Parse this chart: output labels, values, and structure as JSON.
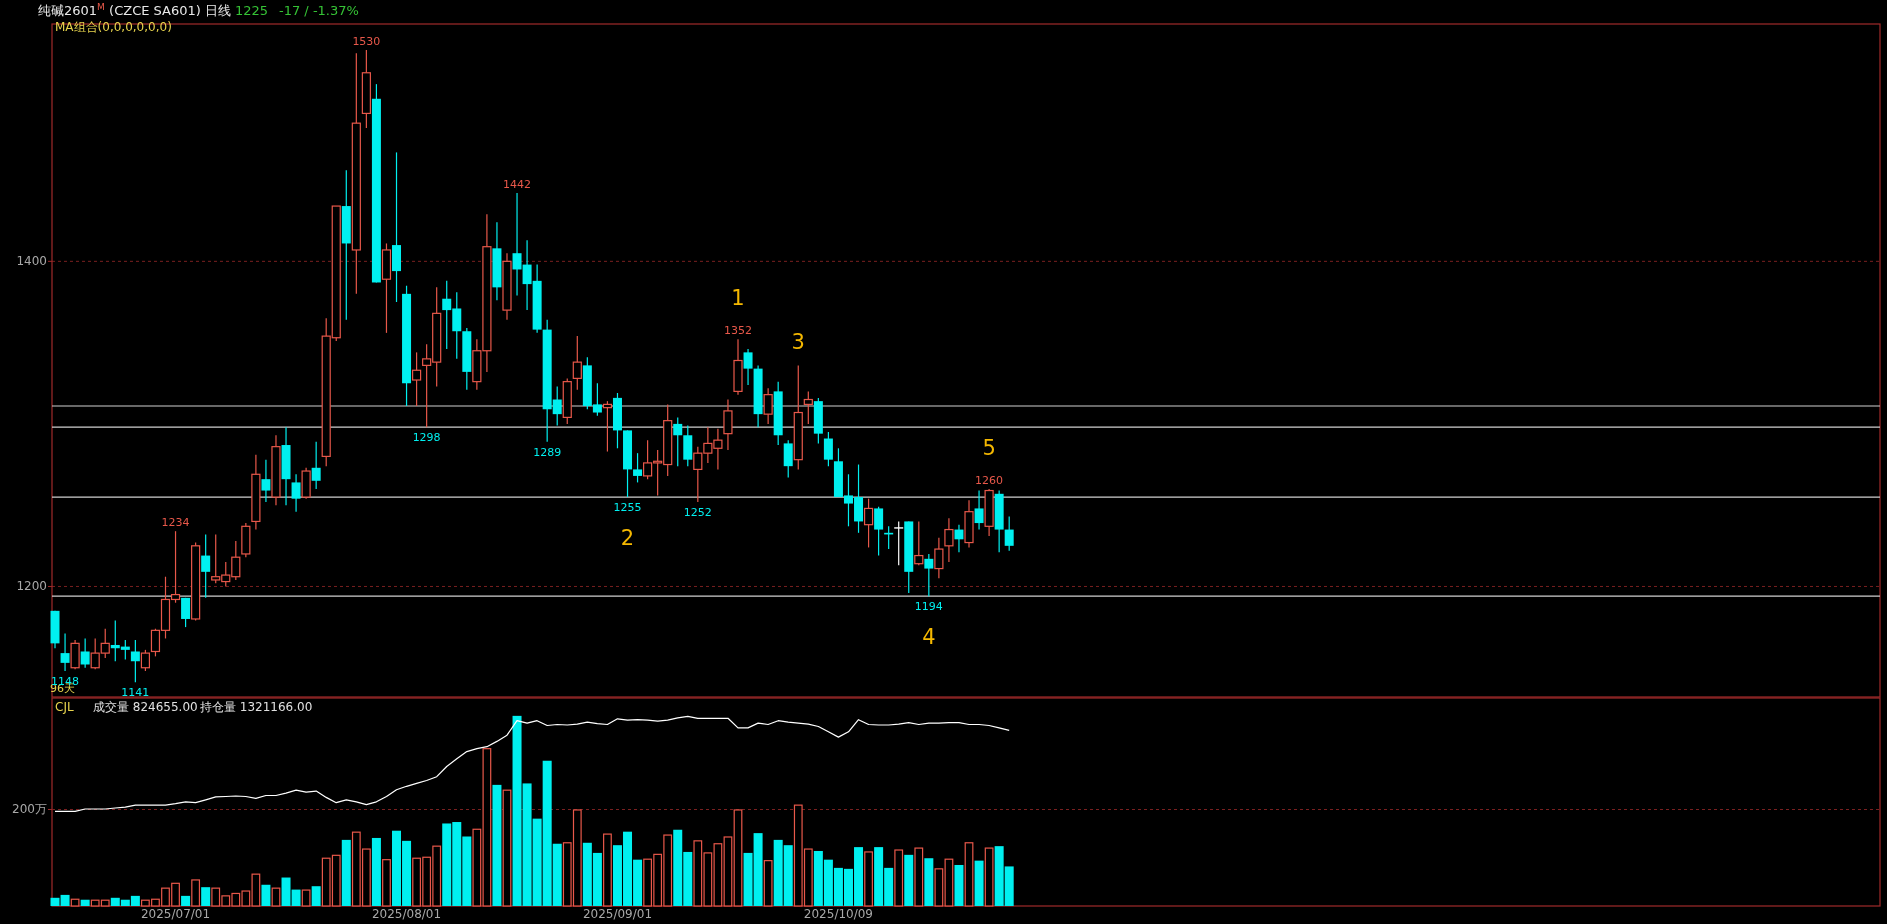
{
  "chart_data": [
    {
      "type": "candlestick",
      "title": "纯碱2601$^{M}$ (CZCE SA601) 日线",
      "categories": [
        null,
        null,
        null,
        null,
        null,
        null,
        null,
        null,
        null,
        null,
        null,
        null,
        "2025/07/01",
        null,
        null,
        null,
        null,
        null,
        null,
        null,
        null,
        null,
        null,
        null,
        null,
        null,
        null,
        null,
        null,
        null,
        null,
        null,
        null,
        null,
        null,
        "2025/08/01",
        null,
        null,
        null,
        null,
        null,
        null,
        null,
        null,
        null,
        null,
        null,
        null,
        null,
        null,
        null,
        null,
        null,
        null,
        null,
        null,
        "2025/09/01",
        null,
        null,
        null,
        null,
        null,
        null,
        null,
        null,
        null,
        null,
        null,
        null,
        null,
        null,
        null,
        null,
        null,
        null,
        null,
        null,
        null,
        "2025/10/09",
        null,
        null,
        null,
        null,
        null,
        null,
        null,
        null,
        null,
        null,
        null,
        null,
        null,
        null,
        null,
        null,
        null
      ],
      "ohlc": [
        [
          1185,
          1185,
          1162,
          1165
        ],
        [
          1159,
          1171,
          1148,
          1153
        ],
        [
          1150,
          1167,
          1149,
          1165
        ],
        [
          1160,
          1168,
          1150,
          1152
        ],
        [
          1150,
          1168,
          1149,
          1159
        ],
        [
          1159,
          1174,
          1156,
          1165
        ],
        [
          1164,
          1179,
          1154,
          1162
        ],
        [
          1163,
          1167,
          1155,
          1161
        ],
        [
          1160,
          1167,
          1141,
          1154
        ],
        [
          1150,
          1161,
          1148,
          1159
        ],
        [
          1160,
          1174,
          1157,
          1173
        ],
        [
          1173,
          1206,
          1168,
          1192
        ],
        [
          1192,
          1234,
          1190,
          1195
        ],
        [
          1193,
          1193,
          1175,
          1180
        ],
        [
          1180,
          1227,
          1179,
          1225
        ],
        [
          1219,
          1232,
          1193,
          1209
        ],
        [
          1204,
          1232,
          1202,
          1206
        ],
        [
          1203,
          1215,
          1200,
          1207
        ],
        [
          1206,
          1228,
          1204,
          1218
        ],
        [
          1220,
          1239,
          1218,
          1237
        ],
        [
          1240,
          1281,
          1235,
          1269
        ],
        [
          1266,
          1278,
          1252,
          1259
        ],
        [
          1255,
          1293,
          1250,
          1286
        ],
        [
          1287,
          1298,
          1250,
          1266
        ],
        [
          1264,
          1269,
          1246,
          1254
        ],
        [
          1255,
          1273,
          1254,
          1271
        ],
        [
          1273,
          1289,
          1260,
          1265
        ],
        [
          1280,
          1365,
          1274,
          1354
        ],
        [
          1353,
          1434,
          1351,
          1434
        ],
        [
          1434,
          1456,
          1364,
          1411
        ],
        [
          1407,
          1528,
          1380,
          1485
        ],
        [
          1491,
          1530,
          1482,
          1516
        ],
        [
          1500,
          1509,
          1387,
          1387
        ],
        [
          1389,
          1411,
          1356,
          1407
        ],
        [
          1410,
          1467,
          1375,
          1394
        ],
        [
          1380,
          1385,
          1311,
          1325
        ],
        [
          1327,
          1344,
          1311,
          1333
        ],
        [
          1336,
          1349,
          1298,
          1340
        ],
        [
          1338,
          1384,
          1323,
          1368
        ],
        [
          1377,
          1388,
          1346,
          1370
        ],
        [
          1371,
          1381,
          1340,
          1357
        ],
        [
          1357,
          1359,
          1321,
          1332
        ],
        [
          1326,
          1352,
          1321,
          1345
        ],
        [
          1345,
          1429,
          1332,
          1409
        ],
        [
          1408,
          1424,
          1376,
          1384
        ],
        [
          1370,
          1405,
          1364,
          1400
        ],
        [
          1405,
          1442,
          1379,
          1395
        ],
        [
          1398,
          1413,
          1370,
          1386
        ],
        [
          1388,
          1398,
          1356,
          1358
        ],
        [
          1358,
          1364,
          1289,
          1309
        ],
        [
          1315,
          1323,
          1299,
          1306
        ],
        [
          1304,
          1328,
          1300,
          1326
        ],
        [
          1328,
          1354,
          1321,
          1338
        ],
        [
          1336,
          1341,
          1309,
          1311
        ],
        [
          1312,
          1325,
          1305,
          1307
        ],
        [
          1310,
          1314,
          1283,
          1312
        ],
        [
          1316,
          1319,
          1285,
          1296
        ],
        [
          1296,
          1296,
          1255,
          1272
        ],
        [
          1272,
          1282,
          1264,
          1268
        ],
        [
          1268,
          1290,
          1266,
          1276
        ],
        [
          1276,
          1284,
          1256,
          1277
        ],
        [
          1275,
          1312,
          1268,
          1302
        ],
        [
          1300,
          1304,
          1274,
          1293
        ],
        [
          1293,
          1299,
          1274,
          1278
        ],
        [
          1272,
          1286,
          1252,
          1282
        ],
        [
          1282,
          1298,
          1276,
          1288
        ],
        [
          1285,
          1297,
          1272,
          1290
        ],
        [
          1294,
          1315,
          1284,
          1308
        ],
        [
          1320,
          1352,
          1318,
          1339
        ],
        [
          1344,
          1346,
          1324,
          1334
        ],
        [
          1334,
          1336,
          1298,
          1306
        ],
        [
          1306,
          1322,
          1300,
          1318
        ],
        [
          1320,
          1326,
          1287,
          1293
        ],
        [
          1288,
          1290,
          1267,
          1274
        ],
        [
          1278,
          1336,
          1272,
          1307
        ],
        [
          1312,
          1320,
          1300,
          1315
        ],
        [
          1314,
          1316,
          1288,
          1294
        ],
        [
          1291,
          1295,
          1274,
          1278
        ],
        [
          1277,
          1285,
          1255,
          1255
        ],
        [
          1256,
          1269,
          1237,
          1251
        ],
        [
          1255,
          1275,
          1233,
          1240
        ],
        [
          1238,
          1254,
          1224,
          1248
        ],
        [
          1248,
          1249,
          1219,
          1235
        ],
        [
          1233,
          1237,
          1223,
          1232
        ],
        [
          1236,
          1240,
          1213,
          1236
        ],
        [
          1240,
          1240,
          1196,
          1209
        ],
        [
          1214,
          1240,
          1213,
          1219
        ],
        [
          1217,
          1220,
          1194,
          1211
        ],
        [
          1211,
          1230,
          1205,
          1223
        ],
        [
          1225,
          1242,
          1215,
          1235
        ],
        [
          1235,
          1238,
          1221,
          1229
        ],
        [
          1227,
          1253,
          1224,
          1246
        ],
        [
          1248,
          1259,
          1235,
          1239
        ],
        [
          1237,
          1260,
          1231,
          1259
        ],
        [
          1257,
          1259,
          1221,
          1235
        ],
        [
          1235,
          1243,
          1222,
          1225
        ]
      ],
      "ylim": [
        1132,
        1546
      ],
      "yticks": [
        1200,
        1400
      ],
      "grid": "y",
      "tick_labels": "y",
      "ref_lines": [
        {
          "axis": "y",
          "value": 1311
        },
        {
          "axis": "y",
          "value": 1298
        },
        {
          "axis": "y",
          "value": 1255
        },
        {
          "axis": "y",
          "value": 1194
        }
      ],
      "annotations": [
        "MA组合(0,0,0,0,0,0)",
        "96天",
        "1225",
        "-17 / -1.37%",
        {
          "text": "1530",
          "y": 1530
        },
        {
          "text": "1442",
          "y": 1442
        },
        {
          "text": "1352",
          "y": 1352
        },
        {
          "text": "1",
          "y": 1352
        },
        {
          "text": "3",
          "y": 1336
        },
        {
          "text": "1260",
          "y": 1260
        },
        {
          "text": "5",
          "y": 1260
        },
        {
          "text": "1234",
          "y": 1234
        },
        {
          "text": "1148",
          "y": 1148
        },
        {
          "text": "1141",
          "y": 1141
        },
        {
          "text": "1298",
          "y": 1298
        },
        {
          "text": "1289",
          "y": 1289
        },
        {
          "text": "1255",
          "y": 1255
        },
        {
          "text": "1252",
          "y": 1252
        },
        {
          "text": "1194",
          "y": 1194
        },
        {
          "text": "2",
          "y": 1255
        },
        {
          "text": "4",
          "y": 1194
        }
      ]
    },
    {
      "type": "bar",
      "title": "CJL",
      "categories": [
        null,
        null,
        null,
        null,
        null,
        null,
        null,
        null,
        null,
        null,
        null,
        null,
        "2025/07/01",
        null,
        null,
        null,
        null,
        null,
        null,
        null,
        null,
        null,
        null,
        null,
        null,
        null,
        null,
        null,
        null,
        null,
        null,
        null,
        null,
        null,
        null,
        "2025/08/01",
        null,
        null,
        null,
        null,
        null,
        null,
        null,
        null,
        null,
        null,
        null,
        null,
        null,
        null,
        null,
        null,
        null,
        null,
        null,
        null,
        "2025/09/01",
        null,
        null,
        null,
        null,
        null,
        null,
        null,
        null,
        null,
        null,
        null,
        null,
        null,
        null,
        null,
        null,
        null,
        null,
        null,
        null,
        null,
        "2025/10/09",
        null,
        null,
        null,
        null,
        null,
        null,
        null,
        null,
        null,
        null,
        null,
        null,
        null,
        null,
        null,
        null,
        null
      ],
      "series": [
        {
          "type": "bar",
          "colors": [
            "#00f0f0",
            "#00f0f0",
            "#e8584a",
            "#00f0f0",
            "#e8584a",
            "#e8584a",
            "#00f0f0",
            "#00f0f0",
            "#00f0f0",
            "#e8584a",
            "#e8584a",
            "#e8584a",
            "#e8584a",
            "#00f0f0",
            "#e8584a",
            "#00f0f0",
            "#e8584a",
            "#e8584a",
            "#e8584a",
            "#e8584a",
            "#e8584a",
            "#00f0f0",
            "#e8584a",
            "#00f0f0",
            "#00f0f0",
            "#e8584a",
            "#00f0f0",
            "#e8584a",
            "#e8584a",
            "#00f0f0",
            "#e8584a",
            "#e8584a",
            "#00f0f0",
            "#e8584a",
            "#00f0f0",
            "#00f0f0",
            "#e8584a",
            "#e8584a",
            "#e8584a",
            "#00f0f0",
            "#00f0f0",
            "#00f0f0",
            "#e8584a",
            "#e8584a",
            "#00f0f0",
            "#e8584a",
            "#00f0f0",
            "#00f0f0",
            "#00f0f0",
            "#00f0f0",
            "#00f0f0",
            "#e8584a",
            "#e8584a",
            "#00f0f0",
            "#00f0f0",
            "#e8584a",
            "#00f0f0",
            "#00f0f0",
            "#00f0f0",
            "#e8584a",
            "#e8584a",
            "#e8584a",
            "#00f0f0",
            "#00f0f0",
            "#e8584a",
            "#e8584a",
            "#e8584a",
            "#e8584a",
            "#e8584a",
            "#00f0f0",
            "#00f0f0",
            "#e8584a",
            "#00f0f0",
            "#00f0f0",
            "#e8584a",
            "#e8584a",
            "#00f0f0",
            "#00f0f0",
            "#00f0f0",
            "#00f0f0",
            "#00f0f0",
            "#e8584a",
            "#00f0f0",
            "#00f0f0",
            "#e8584a",
            "#00f0f0",
            "#e8584a",
            "#00f0f0",
            "#e8584a",
            "#e8584a",
            "#00f0f0",
            "#e8584a",
            "#00f0f0",
            "#e8584a",
            "#00f0f0",
            "#00f0f0"
          ],
          "values": [
            17,
            23,
            14,
            13,
            12,
            12,
            17,
            13,
            21,
            12,
            14,
            37,
            47,
            21,
            54,
            39,
            37,
            21,
            26,
            31,
            66,
            44,
            37,
            59,
            34,
            33,
            41,
            99,
            105,
            137,
            153,
            118,
            141,
            96,
            156,
            135,
            99,
            101,
            124,
            171,
            174,
            144,
            159,
            326,
            251,
            240,
            394,
            254,
            181,
            301,
            129,
            131,
            199,
            131,
            110,
            149,
            126,
            154,
            96,
            97,
            107,
            147,
            158,
            112,
            135,
            110,
            129,
            143,
            199,
            110,
            151,
            94,
            137,
            126,
            209,
            118,
            114,
            96,
            79,
            77,
            122,
            112,
            122,
            79,
            116,
            106,
            120,
            99,
            77,
            97,
            85,
            131,
            94,
            120,
            124,
            82
          ]
        },
        {
          "type": "line",
          "color": "#ffffff",
          "values": [
            196,
            196,
            196,
            201,
            201,
            201,
            203,
            205,
            209,
            209,
            209,
            209,
            212,
            216,
            214,
            220,
            226,
            227,
            228,
            227,
            223,
            229,
            229,
            234,
            240,
            236,
            238,
            225,
            214,
            220,
            216,
            210,
            216,
            227,
            241,
            248,
            254,
            260,
            268,
            289,
            305,
            320,
            326,
            330,
            341,
            354,
            384,
            379,
            384,
            374,
            376,
            375,
            377,
            381,
            378,
            376,
            388,
            385,
            386,
            385,
            383,
            385,
            390,
            393,
            389,
            389,
            389,
            389,
            369,
            369,
            379,
            376,
            384,
            381,
            379,
            377,
            372,
            361,
            350,
            361,
            386,
            376,
            375,
            375,
            377,
            380,
            376,
            379,
            379,
            380,
            380,
            376,
            376,
            374,
            369,
            364
          ]
        }
      ],
      "ylim": [
        0,
        431
      ],
      "yticks": [
        {
          "value": 200,
          "label": "200万"
        }
      ],
      "ref_lines": [
        {
          "axis": "y",
          "value": 200,
          "color": "#7a2020",
          "line_style": "dashed"
        }
      ],
      "annotations": [
        "成交量 824655.00",
        "持仓量 1321166.00"
      ]
    }
  ]
}
